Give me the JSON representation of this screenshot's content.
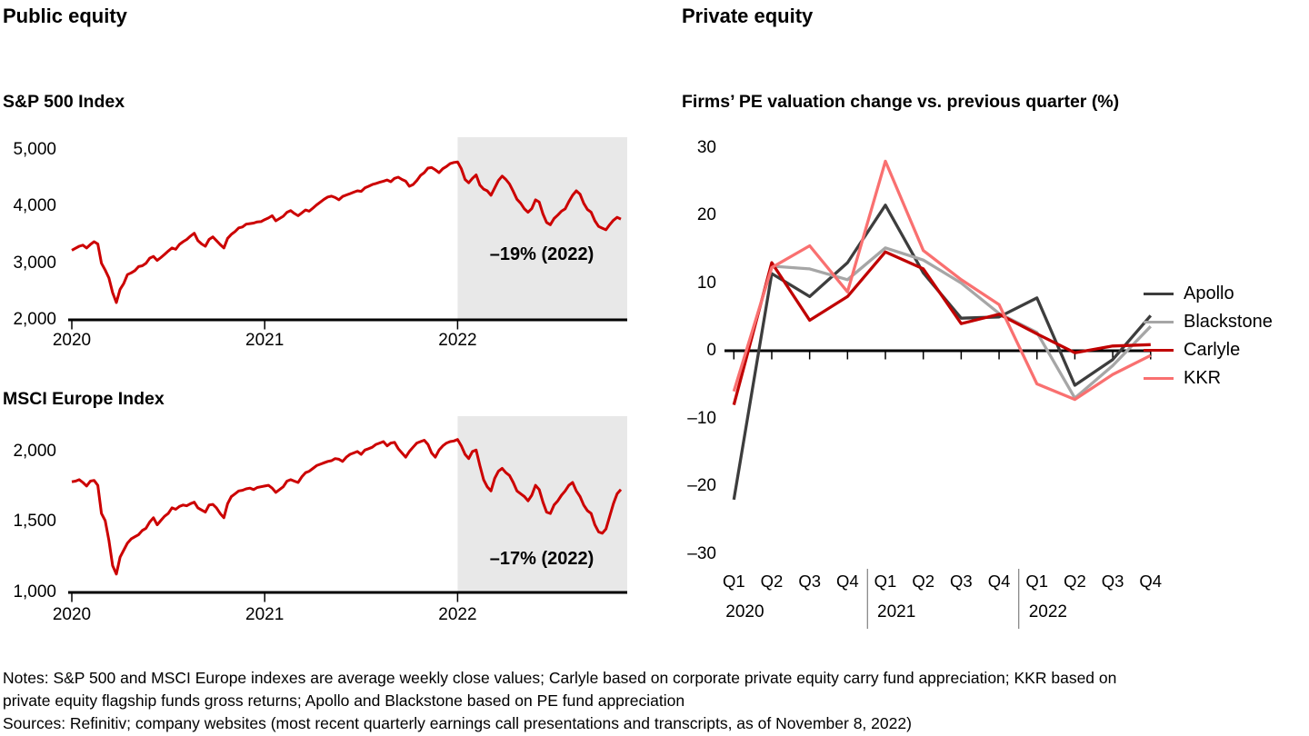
{
  "left_panel": {
    "heading": "Public equity"
  },
  "right_panel": {
    "heading": "Private equity"
  },
  "colors": {
    "public_line": "#cc0000",
    "highlight_shade": "#e8e8e8",
    "axis": "#000000",
    "separator": "#808080"
  },
  "footer": {
    "notes": [
      "Notes: S&P 500 and MSCI Europe indexes are average weekly close values; Carlyle based on corporate private equity carry fund appreciation; KKR based on",
      "private equity flagship funds gross returns; Apollo and Blackstone based on PE fund appreciation"
    ],
    "sources": "Sources: Refinitiv; company websites (most recent quarterly earnings call presentations and transcripts, as of November 8, 2022)"
  },
  "chart_data": [
    {
      "id": "sp500",
      "type": "line",
      "title": "S&P 500 Index",
      "ylim": [
        2000,
        5200
      ],
      "yticks": [
        {
          "value": 5000,
          "label": "5,000"
        },
        {
          "value": 4000,
          "label": "4,000"
        },
        {
          "value": 3000,
          "label": "3,000"
        },
        {
          "value": 2000,
          "label": "2,000"
        }
      ],
      "xticks": [
        {
          "value": 2020,
          "label": "2020"
        },
        {
          "value": 2021,
          "label": "2021"
        },
        {
          "value": 2022,
          "label": "2022"
        }
      ],
      "x_start": 2020,
      "points_per_year": 52,
      "line_color": "#cc0000",
      "highlight": {
        "from_x": 2022,
        "label": "–19% (2022)"
      },
      "values": [
        3230,
        3265,
        3300,
        3320,
        3270,
        3330,
        3380,
        3340,
        3000,
        2880,
        2740,
        2480,
        2305,
        2540,
        2640,
        2800,
        2830,
        2870,
        2940,
        2955,
        3000,
        3090,
        3120,
        3050,
        3100,
        3155,
        3215,
        3270,
        3245,
        3330,
        3380,
        3420,
        3480,
        3530,
        3400,
        3340,
        3300,
        3420,
        3465,
        3400,
        3330,
        3270,
        3440,
        3510,
        3560,
        3625,
        3640,
        3690,
        3700,
        3710,
        3730,
        3735,
        3770,
        3800,
        3840,
        3750,
        3790,
        3830,
        3900,
        3930,
        3880,
        3840,
        3890,
        3940,
        3920,
        3975,
        4030,
        4080,
        4130,
        4170,
        4185,
        4160,
        4120,
        4180,
        4205,
        4230,
        4255,
        4280,
        4270,
        4330,
        4360,
        4390,
        4410,
        4430,
        4450,
        4470,
        4440,
        4500,
        4520,
        4480,
        4450,
        4360,
        4390,
        4460,
        4550,
        4600,
        4680,
        4690,
        4650,
        4600,
        4670,
        4710,
        4760,
        4780,
        4790,
        4670,
        4480,
        4420,
        4500,
        4560,
        4380,
        4310,
        4280,
        4200,
        4330,
        4460,
        4540,
        4480,
        4400,
        4270,
        4130,
        4060,
        3960,
        3900,
        3965,
        4120,
        4080,
        3870,
        3720,
        3680,
        3790,
        3850,
        3920,
        3960,
        4090,
        4200,
        4280,
        4220,
        4060,
        3950,
        3900,
        3750,
        3650,
        3620,
        3590,
        3680,
        3760,
        3810,
        3780
      ]
    },
    {
      "id": "msci",
      "type": "line",
      "title": "MSCI Europe Index",
      "ylim": [
        1000,
        2150
      ],
      "yticks": [
        {
          "value": 2000,
          "label": "2,000"
        },
        {
          "value": 1500,
          "label": "1,500"
        },
        {
          "value": 1000,
          "label": "1,000"
        }
      ],
      "xticks": [
        {
          "value": 2020,
          "label": "2020"
        },
        {
          "value": 2021,
          "label": "2021"
        },
        {
          "value": 2022,
          "label": "2022"
        }
      ],
      "x_start": 2020,
      "points_per_year": 52,
      "line_color": "#cc0000",
      "highlight": {
        "from_x": 2022,
        "label": "–17% (2022)"
      },
      "values": [
        1785,
        1790,
        1800,
        1780,
        1755,
        1790,
        1795,
        1760,
        1560,
        1510,
        1370,
        1190,
        1130,
        1250,
        1300,
        1350,
        1380,
        1395,
        1410,
        1440,
        1455,
        1500,
        1530,
        1480,
        1510,
        1540,
        1560,
        1600,
        1590,
        1610,
        1620,
        1615,
        1630,
        1640,
        1600,
        1585,
        1570,
        1620,
        1625,
        1600,
        1560,
        1530,
        1630,
        1680,
        1700,
        1720,
        1725,
        1735,
        1740,
        1730,
        1745,
        1750,
        1755,
        1760,
        1740,
        1710,
        1730,
        1750,
        1790,
        1800,
        1790,
        1780,
        1820,
        1850,
        1860,
        1880,
        1900,
        1910,
        1920,
        1930,
        1935,
        1950,
        1945,
        1930,
        1960,
        1980,
        1990,
        2000,
        1980,
        2010,
        2020,
        2030,
        2050,
        2060,
        2070,
        2040,
        2060,
        2065,
        2020,
        1990,
        1960,
        2000,
        2030,
        2060,
        2070,
        2080,
        2050,
        1990,
        1960,
        2010,
        2040,
        2060,
        2070,
        2075,
        2085,
        2040,
        1980,
        1950,
        2000,
        2010,
        1900,
        1800,
        1750,
        1720,
        1810,
        1860,
        1880,
        1850,
        1830,
        1780,
        1720,
        1700,
        1680,
        1650,
        1690,
        1760,
        1730,
        1640,
        1570,
        1560,
        1620,
        1650,
        1690,
        1720,
        1760,
        1780,
        1720,
        1680,
        1620,
        1580,
        1560,
        1480,
        1430,
        1420,
        1450,
        1540,
        1630,
        1700,
        1730
      ]
    },
    {
      "id": "pe",
      "type": "line",
      "title": "Firms’ PE valuation change vs. previous quarter (%)",
      "ylim": [
        -30,
        30
      ],
      "yticks": [
        {
          "value": 30,
          "label": "30"
        },
        {
          "value": 20,
          "label": "20"
        },
        {
          "value": 10,
          "label": "10"
        },
        {
          "value": 0,
          "label": "0"
        },
        {
          "value": -10,
          "label": "–10"
        },
        {
          "value": -20,
          "label": "–20"
        },
        {
          "value": -30,
          "label": "–30"
        }
      ],
      "x_categories": [
        "Q1",
        "Q2",
        "Q3",
        "Q4",
        "Q1",
        "Q2",
        "Q3",
        "Q4",
        "Q1",
        "Q2",
        "Q3",
        "Q4"
      ],
      "year_groups": [
        {
          "label": "2020",
          "start_index": 0
        },
        {
          "label": "2021",
          "start_index": 4
        },
        {
          "label": "2022",
          "start_index": 8
        }
      ],
      "legend_position": "right",
      "series": [
        {
          "name": "Apollo",
          "color": "#3d3d3d",
          "values": [
            -22,
            11.4,
            8,
            13,
            21.5,
            11.5,
            4.8,
            5,
            7.8,
            -5.1,
            -1.3,
            5.2
          ]
        },
        {
          "name": "Blackstone",
          "color": "#a6a6a6",
          "values": [
            null,
            12.5,
            12.1,
            10.5,
            15.2,
            13.4,
            10,
            5.5,
            2.7,
            -7,
            -2.2,
            3.6
          ]
        },
        {
          "name": "Carlyle",
          "color": "#c00000",
          "values": [
            -8,
            13,
            4.5,
            8,
            14.6,
            12.1,
            4,
            5.4,
            2.5,
            -0.3,
            0.7,
            0.9
          ]
        },
        {
          "name": "KKR",
          "color": "#f97070",
          "values": [
            -6,
            12.3,
            15.5,
            8.7,
            28,
            14.8,
            10.5,
            6.8,
            -4.9,
            -7.2,
            -3.5,
            -0.7
          ]
        }
      ]
    }
  ]
}
